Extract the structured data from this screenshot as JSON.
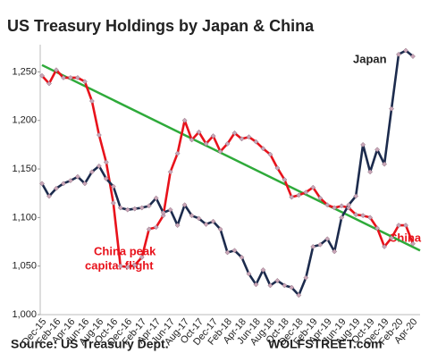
{
  "chart_data": {
    "type": "line",
    "title": "US Treasury Holdings by Japan & China",
    "categories": [
      "Dec-15",
      null,
      "Feb-16",
      null,
      "Apr-16",
      null,
      "Jun-16",
      null,
      "Aug-16",
      null,
      "Oct-16",
      null,
      "Dec-16",
      null,
      "Feb-17",
      null,
      "Apr-17",
      null,
      "Jun-17",
      null,
      "Aug-17",
      null,
      "Oct-17",
      null,
      "Dec-17",
      null,
      "Feb-18",
      null,
      "Apr-18",
      null,
      "Jun-18",
      null,
      "Aug-18",
      null,
      "Oct-18",
      null,
      "Dec-18",
      null,
      "Feb-19",
      null,
      "Apr-19",
      null,
      "Jun-19",
      null,
      "Aug-19",
      null,
      "Oct-19",
      null,
      "Dec-19",
      null,
      "Feb-20",
      null,
      "Apr-20"
    ],
    "series": [
      {
        "name": "China",
        "color": "#e8121b",
        "values": [
          1246,
          1238,
          1252,
          1244,
          1244,
          1244,
          1240,
          1220,
          1185,
          1157,
          1115,
          1050,
          1049,
          1051,
          1059,
          1088,
          1090,
          1102,
          1147,
          1166,
          1200,
          1180,
          1188,
          1176,
          1184,
          1168,
          1176,
          1187,
          1181,
          1183,
          1178,
          1171,
          1165,
          1151,
          1139,
          1121,
          1123,
          1126,
          1131,
          1120,
          1113,
          1110,
          1112,
          1110,
          1103,
          1102,
          1100,
          1089,
          1070,
          1079,
          1092,
          1092,
          1073
        ]
      },
      {
        "name": "Japan",
        "color": "#1c2b4d",
        "values": [
          1135,
          1122,
          1130,
          1135,
          1138,
          1142,
          1135,
          1147,
          1153,
          1140,
          1132,
          1110,
          1108,
          1109,
          1110,
          1112,
          1120,
          1105,
          1108,
          1092,
          1113,
          1102,
          1099,
          1093,
          1096,
          1088,
          1064,
          1066,
          1059,
          1042,
          1031,
          1046,
          1030,
          1035,
          1030,
          1028,
          1020,
          1038,
          1070,
          1072,
          1078,
          1065,
          1100,
          1113,
          1122,
          1175,
          1147,
          1170,
          1155,
          1212,
          1268,
          1272,
          1266
        ]
      }
    ],
    "trend_line": {
      "color": "#2eaa3a",
      "start": 1257,
      "end": 1066
    },
    "marker_color": "#c9a6b8",
    "ylim": [
      1000,
      1278
    ],
    "yticks": [
      {
        "value": 1000,
        "label": "1,000"
      },
      {
        "value": 1050,
        "label": "1,050"
      },
      {
        "value": 1100,
        "label": "1,100"
      },
      {
        "value": 1150,
        "label": "1,150"
      },
      {
        "value": 1200,
        "label": "1,200"
      },
      {
        "value": 1250,
        "label": "1,250"
      }
    ],
    "annotations": [
      "China peak",
      "capital flight"
    ],
    "source": "Source: US Treasury Dept.",
    "brand": "WOLFSTREET.com"
  }
}
